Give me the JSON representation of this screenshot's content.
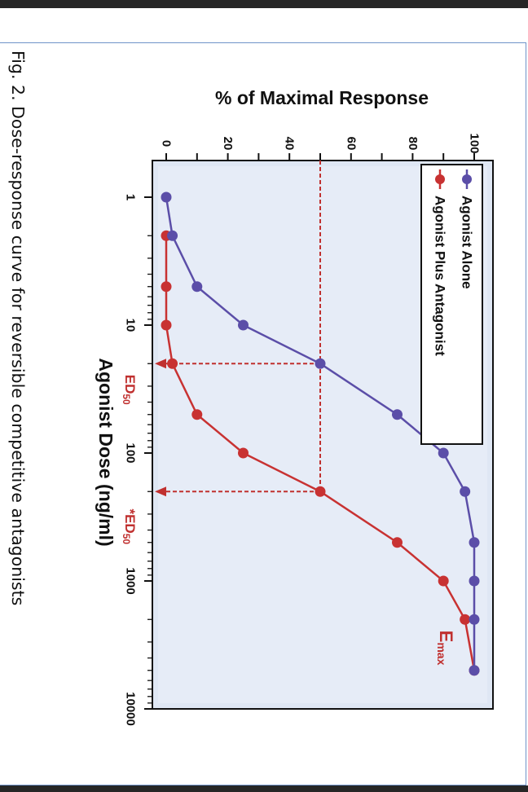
{
  "caption": "Fig. 2. Dose-response curve for reversible competitive antagonists",
  "chart_data": {
    "type": "line",
    "orientation": "rotated 90° clockwise",
    "ylabel": "% of Maximal Response",
    "xlabel": "Agonist Dose (ng/ml)",
    "xscale": "log",
    "xlim": [
      1,
      10000
    ],
    "ylim": [
      0,
      100
    ],
    "x_ticks": [
      "1",
      "10",
      "100",
      "1000",
      "10000"
    ],
    "y_ticks": [
      "0",
      "20",
      "40",
      "60",
      "80",
      "100"
    ],
    "series": [
      {
        "name": "Agonist Alone",
        "color": "#5b4ea8",
        "x": [
          1,
          2,
          5,
          10,
          20,
          50,
          100,
          200,
          500,
          1000,
          2000,
          5000
        ],
        "y": [
          0,
          2,
          10,
          25,
          50,
          75,
          90,
          97,
          100,
          100,
          100,
          100
        ]
      },
      {
        "name": "Agonist Plus Antagonist",
        "color": "#c83232",
        "x": [
          2,
          5,
          10,
          20,
          50,
          100,
          200,
          500,
          1000,
          2000,
          5000
        ],
        "y": [
          0,
          0,
          0,
          2,
          10,
          25,
          50,
          75,
          90,
          97,
          100
        ]
      }
    ],
    "annotations": {
      "ed50": {
        "label": "ED",
        "sub": "50",
        "x": 20
      },
      "ed50_shifted": {
        "label": "*ED",
        "sub": "50",
        "x": 200
      },
      "emax": {
        "label": "E",
        "sub": "max"
      },
      "half_response": 50
    },
    "legend_position": "top-left (rotated)",
    "grid": false
  }
}
